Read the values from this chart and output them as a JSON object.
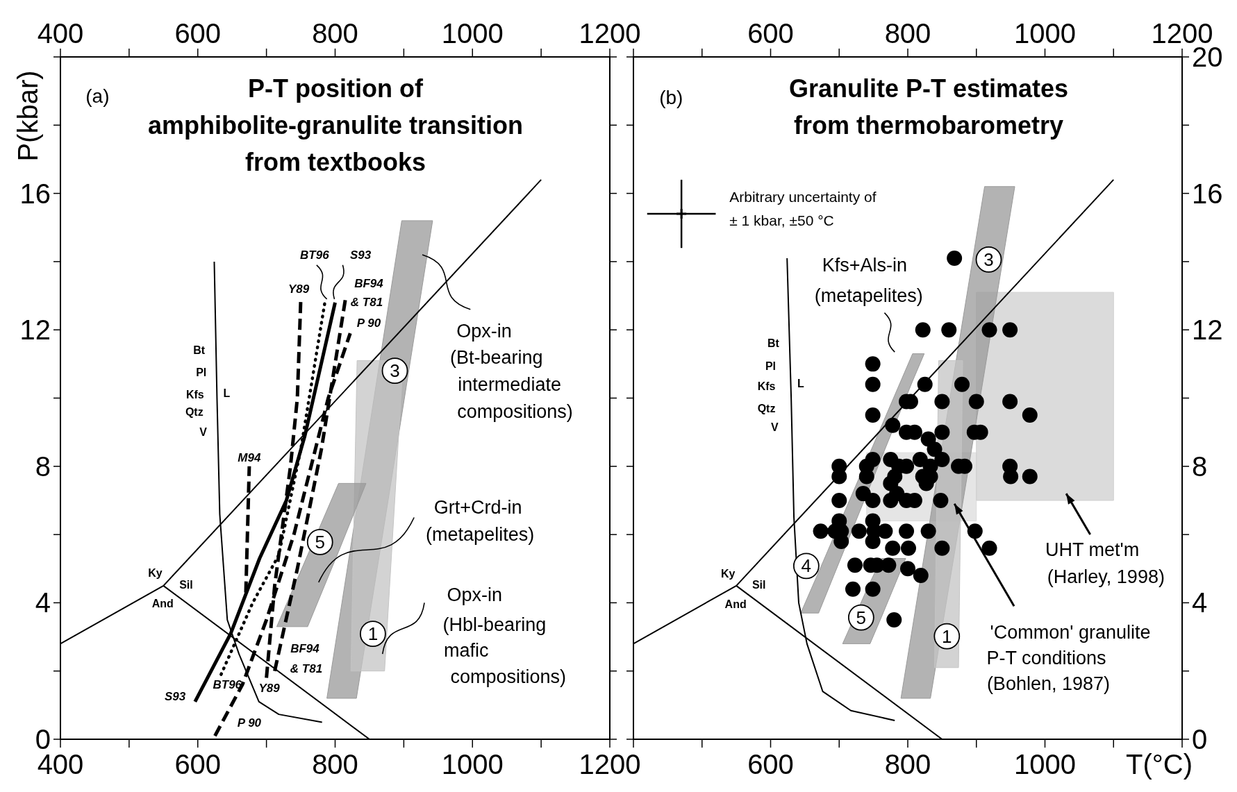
{
  "chart_data": [
    {
      "type": "line",
      "title": "P-T position of amphibolite-granulite transition from textbooks",
      "ylabel": "P(kbar)",
      "xlim": [
        400,
        1200
      ],
      "ylim": [
        0,
        20
      ],
      "xticks": [
        400,
        {
          "value": 500,
          "label": null
        },
        600,
        {
          "value": 700,
          "label": null
        },
        800,
        {
          "value": 900,
          "label": null
        },
        1000,
        {
          "value": 1100,
          "label": null
        },
        1200
      ],
      "x2lim": [
        400,
        1200
      ],
      "x2ticks": [
        400,
        {
          "value": 500,
          "label": null
        },
        600,
        {
          "value": 700,
          "label": null
        },
        800,
        {
          "value": 900,
          "label": null
        },
        1000,
        {
          "value": 1100,
          "label": null
        },
        1200
      ],
      "yticks": [
        0,
        {
          "value": 2,
          "label": null
        },
        4,
        {
          "value": 6,
          "label": null
        },
        8,
        {
          "value": 10,
          "label": null
        },
        12,
        {
          "value": 14,
          "label": null
        },
        16,
        {
          "value": 18,
          "label": null
        },
        {
          "value": 20,
          "label": null
        }
      ],
      "annotations": [
        "(a)",
        "BT96",
        "S93",
        "Y89",
        "BF94",
        "& T81",
        "P 90",
        "M94",
        "BF94",
        "& T81",
        "S93",
        "BT96",
        "Y89",
        "P 90",
        "Bt",
        "Pl",
        "Kfs",
        "Qtz",
        "V",
        "L",
        "Ky",
        "Sil",
        "And",
        "3",
        "5",
        "1",
        "Opx-in",
        "(Bt-bearing",
        "intermediate",
        "compositions)",
        "Grt+Crd-in",
        "(metapelites)",
        {
          "text": "Opx-in",
          "x": 869,
          "y": 2.5
        },
        "(Hbl-bearing",
        "mafic",
        "compositions)"
      ],
      "series": [
        {
          "type": "area",
          "color": "#9a9a9a",
          "x": [
            788,
            831,
            897,
            942
          ],
          "values": [
            null,
            null,
            null,
            null
          ],
          "lower": [
            1.2,
            1.2,
            9.5,
            15.2
          ],
          "upper": [
            1.2,
            6.7,
            15.2,
            15.2
          ]
        },
        {
          "type": "area",
          "color": "#c4c4c4",
          "x": [
            823,
            832,
            872,
            899
          ],
          "values": [
            null,
            null,
            null,
            null
          ],
          "lower": [
            2,
            2,
            2,
            11.1
          ],
          "upper": [
            2,
            11.1,
            11.1,
            11.1
          ]
        },
        {
          "type": "area",
          "color": "#9a9a9a",
          "x": [
            715,
            760,
            805,
            845
          ],
          "values": [
            null,
            null,
            null,
            null
          ],
          "lower": [
            3.3,
            3.3,
            5.5,
            7.5
          ],
          "upper": [
            3.3,
            5.4,
            7.5,
            7.5
          ]
        },
        {
          "color": "#000000",
          "x": [
            400,
            550,
            1100,
            null,
            550,
            850
          ],
          "values": [
            2.8,
            4.5,
            16.4,
            null,
            4.5,
            0
          ]
        },
        {
          "color": "#000000",
          "x": [
            624,
            628,
            632,
            643,
            660,
            689,
            718,
            781
          ],
          "values": [
            14,
            10,
            6.6,
            3.5,
            2.5,
            1.1,
            0.73,
            0.5
          ]
        },
        {
          "color": "#000000",
          "line_style": "solid",
          "x": [
            596,
            648,
            690,
            729,
            756,
            800
          ],
          "values": [
            1.1,
            3.1,
            5.3,
            7,
            8.9,
            12.8
          ]
        },
        {
          "color": "#000000",
          "line_style": "dotted",
          "x": [
            634,
            680,
            718,
            750,
            785
          ],
          "values": [
            1.9,
            4,
            5.4,
            8.5,
            12.8
          ]
        },
        {
          "color": "#000000",
          "line_style": "dashed",
          "x": [
            700,
            712,
            735,
            745,
            750
          ],
          "values": [
            1.8,
            4.5,
            8,
            10,
            12.9
          ]
        },
        {
          "color": "#000000",
          "line_style": "dashed",
          "x": [
            712,
            745,
            780,
            815
          ],
          "values": [
            2,
            5,
            8.5,
            12.9
          ]
        },
        {
          "color": "#000000",
          "line_style": "dashed",
          "x": [
            625,
            665,
            700,
            740,
            790,
            822
          ],
          "values": [
            0.1,
            1.6,
            3.5,
            6,
            10,
            11.9
          ]
        },
        {
          "color": "#000000",
          "line_style": "dashed",
          "x": [
            670,
            675
          ],
          "values": [
            4.3,
            8
          ]
        }
      ]
    },
    {
      "type": "scatter",
      "title": "Granulite P-T estimates from thermobarometry",
      "xlabel": "T(°C)",
      "xlim": [
        400,
        1200
      ],
      "xticks": [
        {
          "value": 400,
          "label": null
        },
        {
          "value": 500,
          "label": null
        },
        600,
        {
          "value": 700,
          "label": null
        },
        800,
        {
          "value": 900,
          "label": null
        },
        1000,
        {
          "value": 1100,
          "label": null
        },
        {
          "value": 1200,
          "label": null
        }
      ],
      "x2lim": [
        400,
        1200
      ],
      "x2ticks": [
        {
          "value": 400,
          "label": null
        },
        {
          "value": 500,
          "label": null
        },
        600,
        {
          "value": 700,
          "label": null
        },
        800,
        {
          "value": 900,
          "label": null
        },
        1000,
        {
          "value": 1100,
          "label": null
        },
        1200
      ],
      "y2lim": [
        0,
        20
      ],
      "y2ticks": [
        0,
        {
          "value": 2,
          "label": null
        },
        4,
        {
          "value": 6,
          "label": null
        },
        8,
        {
          "value": 10,
          "label": null
        },
        12,
        {
          "value": 14,
          "label": null
        },
        16,
        {
          "value": 18,
          "label": null
        },
        20
      ],
      "annotations": [
        "(b)",
        "Arbitrary uncertainty of",
        "± 1 kbar, ±50 °C",
        "Bt",
        "Pl",
        "Kfs",
        "Qtz",
        "V",
        "L",
        "Ky",
        "Sil",
        "And",
        "3",
        "4",
        "5",
        "1",
        "Kfs+Als-in",
        "(metapelites)",
        "UHT met'm",
        "(Harley, 1998)",
        "'Common' granulite",
        "P-T conditions",
        "(Bohlen, 1987)"
      ],
      "series": [
        {
          "type": "area",
          "axis": "y2",
          "color": "#dcdcdc",
          "x": [
            740,
            900
          ],
          "values": [
            null,
            null
          ],
          "lower": [
            6.4,
            6.4
          ],
          "upper": [
            8.4,
            8.4
          ]
        },
        {
          "type": "area",
          "axis": "y2",
          "color": "#cfcfcf",
          "x": [
            900,
            1100
          ],
          "values": [
            null,
            null
          ],
          "lower": [
            7,
            7
          ],
          "upper": [
            13.1,
            13.1
          ]
        },
        {
          "type": "area",
          "axis": "y2",
          "color": "#9a9a9a",
          "x": [
            790,
            833,
            912,
            956
          ],
          "values": [
            null,
            null,
            null,
            null
          ],
          "lower": [
            1.2,
            1.2,
            10.8,
            16.2
          ],
          "upper": [
            1.2,
            6.5,
            16.2,
            16.2
          ]
        },
        {
          "type": "area",
          "axis": "y2",
          "color": "#c4c4c4",
          "x": [
            839,
            845,
            874,
            880
          ],
          "values": [
            null,
            null,
            null,
            null
          ],
          "lower": [
            2.1,
            2.1,
            2.1,
            11.1
          ],
          "upper": [
            2.1,
            11.1,
            11.1,
            11.1
          ]
        },
        {
          "type": "area",
          "axis": "y2",
          "color": "#9a9a9a",
          "x": [
            644,
            670,
            807,
            824
          ],
          "values": [
            null,
            null,
            null,
            null
          ],
          "lower": [
            3.7,
            3.7,
            10.5,
            11.3
          ],
          "upper": [
            3.7,
            4.9,
            11.3,
            11.3
          ]
        },
        {
          "type": "area",
          "axis": "y2",
          "color": "#9a9a9a",
          "x": [
            705,
            745,
            762,
            797
          ],
          "values": [
            null,
            null,
            null,
            null
          ],
          "lower": [
            2.8,
            2.8,
            3.6,
            5.3
          ],
          "upper": [
            2.8,
            4.6,
            5.3,
            5.3
          ]
        },
        {
          "type": "line",
          "axis": "y2",
          "color": "#000000",
          "x": [
            400,
            550,
            1100,
            null,
            550,
            850
          ],
          "values": [
            2.8,
            4.5,
            16.4,
            null,
            4.5,
            0
          ]
        },
        {
          "type": "line",
          "axis": "y2",
          "color": "#000000",
          "x": [
            624,
            630,
            634,
            641,
            653,
            676,
            717,
            781
          ],
          "values": [
            14.1,
            10,
            6.5,
            4,
            2.8,
            1.4,
            0.84,
            0.55
          ]
        },
        {
          "axis": "y2",
          "marker": "circle",
          "color": "#000000",
          "x": [
            868,
            822,
            860,
            919,
            949,
            749,
            749,
            825,
            879,
            798,
            804,
            850,
            900,
            949,
            749,
            978,
            778,
            798,
            810,
            850,
            897,
            906,
            830,
            839,
            749,
            775,
            818,
            850,
            700,
            740,
            787,
            798,
            833,
            874,
            883,
            949,
            700,
            740,
            781,
            822,
            833,
            950,
            978,
            775,
            827,
            735,
            784,
            700,
            749,
            775,
            798,
            810,
            848,
            700,
            749,
            673,
            694,
            703,
            729,
            751,
            767,
            798,
            830,
            898,
            703,
            749,
            778,
            801,
            850,
            919,
            723,
            746,
            755,
            772,
            800,
            819,
            720,
            749,
            780
          ],
          "values": [
            14.1,
            12,
            12,
            12,
            12,
            11,
            10.4,
            10.4,
            10.4,
            9.9,
            9.9,
            9.9,
            9.9,
            9.9,
            9.5,
            9.5,
            9.2,
            9,
            9,
            9,
            9,
            9,
            8.8,
            8.5,
            8.2,
            8.2,
            8.2,
            8.2,
            8,
            8,
            8,
            8,
            8,
            8,
            8,
            8,
            7.7,
            7.7,
            7.7,
            7.7,
            7.7,
            7.7,
            7.7,
            7.5,
            7.5,
            7.2,
            7.2,
            7,
            7,
            7,
            7,
            7,
            7,
            6.4,
            6.4,
            6.1,
            6.1,
            6.1,
            6.1,
            6.1,
            6.1,
            6.1,
            6.1,
            6.1,
            5.8,
            5.8,
            5.6,
            5.6,
            5.6,
            5.6,
            5.1,
            5.1,
            5.1,
            5.1,
            5,
            4.8,
            4.4,
            4.4,
            3.5
          ]
        },
        {
          "axis": "y2",
          "marker": "cross",
          "color": "#000000",
          "x": [
            470
          ],
          "values": [
            15.4
          ],
          "errors": [
            1
          ],
          "xerrors": [
            50
          ]
        }
      ]
    }
  ]
}
